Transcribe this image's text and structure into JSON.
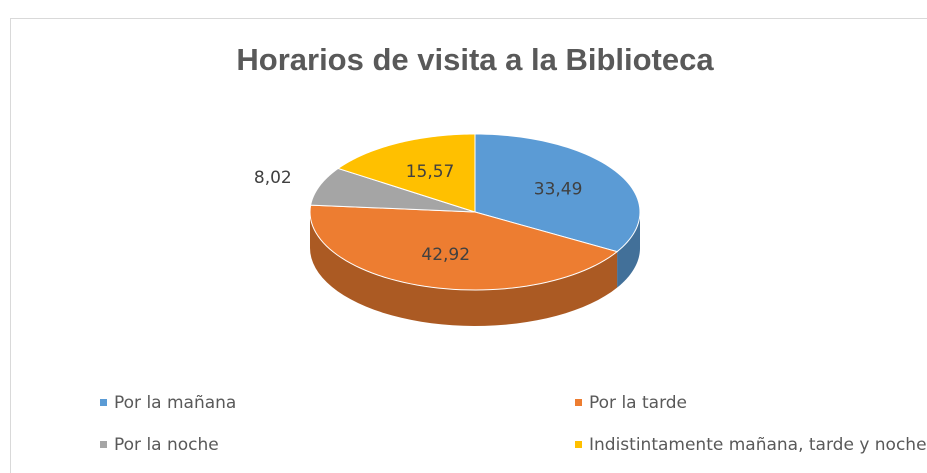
{
  "chart_data": {
    "type": "pie",
    "title": "Horarios de visita a la Biblioteca",
    "categories": [
      "Por la mañana",
      "Por la tarde",
      "Por la noche",
      "Indistintamente mañana, tarde y noche"
    ],
    "values": [
      33.49,
      42.92,
      8.02,
      15.57
    ],
    "value_labels": [
      "33,49",
      "42,92",
      "8,02",
      "15,57"
    ],
    "colors": [
      "#5b9bd5",
      "#ed7d31",
      "#a5a5a5",
      "#ffc000"
    ],
    "legend": "bottom"
  }
}
